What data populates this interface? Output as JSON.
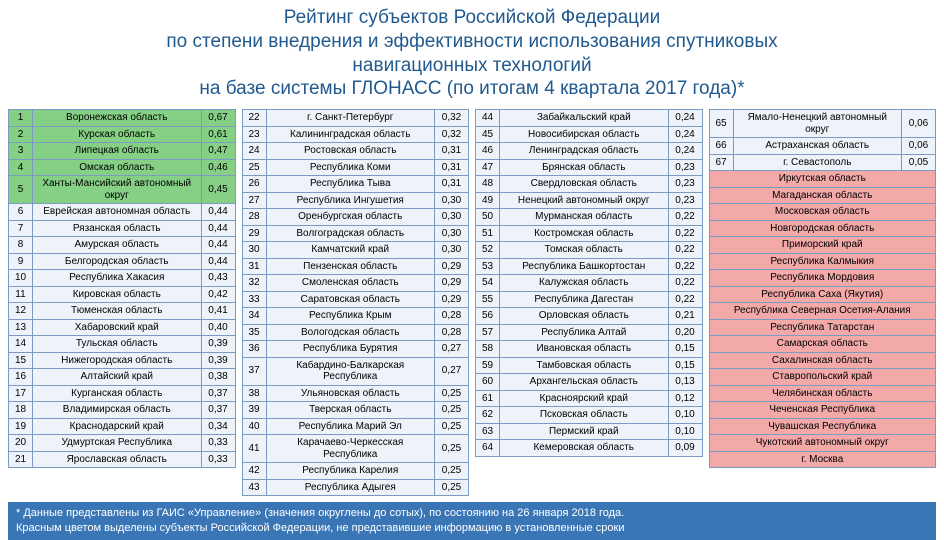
{
  "title": {
    "line1": "Рейтинг субъектов Российской Федерации",
    "line2": "по степени внедрения и эффективности использования спутниковых",
    "line3": "навигационных технологий",
    "line4": "на базе системы ГЛОНАСС (по итогам 4 квартала 2017 года)*"
  },
  "columns": [
    {
      "rows": [
        {
          "n": "1",
          "name": "Воронежская область",
          "v": "0,67",
          "hl": "green"
        },
        {
          "n": "2",
          "name": "Курская область",
          "v": "0,61",
          "hl": "green"
        },
        {
          "n": "3",
          "name": "Липецкая область",
          "v": "0,47",
          "hl": "green"
        },
        {
          "n": "4",
          "name": "Омская область",
          "v": "0,46",
          "hl": "green"
        },
        {
          "n": "5",
          "name": "Ханты-Мансийский автономный округ",
          "v": "0,45",
          "hl": "green"
        },
        {
          "n": "6",
          "name": "Еврейская автономная область",
          "v": "0,44"
        },
        {
          "n": "7",
          "name": "Рязанская область",
          "v": "0,44"
        },
        {
          "n": "8",
          "name": "Амурская область",
          "v": "0,44"
        },
        {
          "n": "9",
          "name": "Белгородская область",
          "v": "0,44"
        },
        {
          "n": "10",
          "name": "Республика Хакасия",
          "v": "0,43"
        },
        {
          "n": "11",
          "name": "Кировская область",
          "v": "0,42"
        },
        {
          "n": "12",
          "name": "Тюменская область",
          "v": "0,41"
        },
        {
          "n": "13",
          "name": "Хабаровский край",
          "v": "0,40"
        },
        {
          "n": "14",
          "name": "Тульская область",
          "v": "0,39"
        },
        {
          "n": "15",
          "name": "Нижегородская область",
          "v": "0,39"
        },
        {
          "n": "16",
          "name": "Алтайский край",
          "v": "0,38"
        },
        {
          "n": "17",
          "name": "Курганская область",
          "v": "0,37"
        },
        {
          "n": "18",
          "name": "Владимирская область",
          "v": "0,37"
        },
        {
          "n": "19",
          "name": "Краснодарский край",
          "v": "0,34"
        },
        {
          "n": "20",
          "name": "Удмуртская Республика",
          "v": "0,33"
        },
        {
          "n": "21",
          "name": "Ярославская область",
          "v": "0,33"
        }
      ]
    },
    {
      "rows": [
        {
          "n": "22",
          "name": "г. Санкт-Петербург",
          "v": "0,32"
        },
        {
          "n": "23",
          "name": "Калининградская область",
          "v": "0,32"
        },
        {
          "n": "24",
          "name": "Ростовская область",
          "v": "0,31"
        },
        {
          "n": "25",
          "name": "Республика Коми",
          "v": "0,31"
        },
        {
          "n": "26",
          "name": "Республика Тыва",
          "v": "0,31"
        },
        {
          "n": "27",
          "name": "Республика Ингушетия",
          "v": "0,30"
        },
        {
          "n": "28",
          "name": "Оренбургская область",
          "v": "0,30"
        },
        {
          "n": "29",
          "name": "Волгоградская область",
          "v": "0,30"
        },
        {
          "n": "30",
          "name": "Камчатский край",
          "v": "0,30"
        },
        {
          "n": "31",
          "name": "Пензенская область",
          "v": "0,29"
        },
        {
          "n": "32",
          "name": "Смоленская область",
          "v": "0,29"
        },
        {
          "n": "33",
          "name": "Саратовская область",
          "v": "0,29"
        },
        {
          "n": "34",
          "name": "Республика Крым",
          "v": "0,28"
        },
        {
          "n": "35",
          "name": "Вологодская область",
          "v": "0,28"
        },
        {
          "n": "36",
          "name": "Республика Бурятия",
          "v": "0,27"
        },
        {
          "n": "37",
          "name": "Кабардино-Балкарская Республика",
          "v": "0,27"
        },
        {
          "n": "38",
          "name": "Ульяновская область",
          "v": "0,25"
        },
        {
          "n": "39",
          "name": "Тверская область",
          "v": "0,25"
        },
        {
          "n": "40",
          "name": "Республика Марий Эл",
          "v": "0,25"
        },
        {
          "n": "41",
          "name": "Карачаево-Черкесская Республика",
          "v": "0,25"
        },
        {
          "n": "42",
          "name": "Республика Карелия",
          "v": "0,25"
        },
        {
          "n": "43",
          "name": "Республика Адыгея",
          "v": "0,25"
        }
      ]
    },
    {
      "rows": [
        {
          "n": "44",
          "name": "Забайкальский край",
          "v": "0,24"
        },
        {
          "n": "45",
          "name": "Новосибирская область",
          "v": "0,24"
        },
        {
          "n": "46",
          "name": "Ленинградская область",
          "v": "0,24"
        },
        {
          "n": "47",
          "name": "Брянская область",
          "v": "0,23"
        },
        {
          "n": "48",
          "name": "Свердловская область",
          "v": "0,23"
        },
        {
          "n": "49",
          "name": "Ненецкий автономный округ",
          "v": "0,23"
        },
        {
          "n": "50",
          "name": "Мурманская область",
          "v": "0,22"
        },
        {
          "n": "51",
          "name": "Костромская область",
          "v": "0,22"
        },
        {
          "n": "52",
          "name": "Томская область",
          "v": "0,22"
        },
        {
          "n": "53",
          "name": "Республика Башкортостан",
          "v": "0,22"
        },
        {
          "n": "54",
          "name": "Калужская область",
          "v": "0,22"
        },
        {
          "n": "55",
          "name": "Республика Дагестан",
          "v": "0,22"
        },
        {
          "n": "56",
          "name": "Орловская область",
          "v": "0,21"
        },
        {
          "n": "57",
          "name": "Республика Алтай",
          "v": "0,20"
        },
        {
          "n": "58",
          "name": "Ивановская область",
          "v": "0,15"
        },
        {
          "n": "59",
          "name": "Тамбовская область",
          "v": "0,15"
        },
        {
          "n": "60",
          "name": "Архангельская область",
          "v": "0,13"
        },
        {
          "n": "61",
          "name": "Красноярский край",
          "v": "0,12"
        },
        {
          "n": "62",
          "name": "Псковская область",
          "v": "0,10"
        },
        {
          "n": "63",
          "name": "Пермский край",
          "v": "0,10"
        },
        {
          "n": "64",
          "name": "Кемеровская область",
          "v": "0,09"
        }
      ]
    },
    {
      "rows": [
        {
          "n": "65",
          "name": "Ямало-Ненецкий автономный округ",
          "v": "0,06"
        },
        {
          "n": "66",
          "name": "Астраханская область",
          "v": "0,06"
        },
        {
          "n": "67",
          "name": "г. Севастополь",
          "v": "0,05"
        },
        {
          "name": "Иркутская область",
          "hl": "red"
        },
        {
          "name": "Магаданская область",
          "hl": "red"
        },
        {
          "name": "Московская область",
          "hl": "red"
        },
        {
          "name": "Новгородская область",
          "hl": "red"
        },
        {
          "name": "Приморский край",
          "hl": "red"
        },
        {
          "name": "Республика Калмыкия",
          "hl": "red"
        },
        {
          "name": "Республика Мордовия",
          "hl": "red"
        },
        {
          "name": "Республика Саха (Якутия)",
          "hl": "red"
        },
        {
          "name": "Республика Северная Осетия-Алания",
          "hl": "red"
        },
        {
          "name": "Республика Татарстан",
          "hl": "red"
        },
        {
          "name": "Самарская область",
          "hl": "red"
        },
        {
          "name": "Сахалинская область",
          "hl": "red"
        },
        {
          "name": "Ставропольский край",
          "hl": "red"
        },
        {
          "name": "Челябинская область",
          "hl": "red"
        },
        {
          "name": "Чеченская Республика",
          "hl": "red"
        },
        {
          "name": "Чувашская Республика",
          "hl": "red"
        },
        {
          "name": "Чукотский автономный округ",
          "hl": "red"
        },
        {
          "name": "г. Москва",
          "hl": "red"
        }
      ]
    }
  ],
  "footnote": {
    "line1": "* Данные представлены из ГАИС «Управление» (значения округлены до сотых), по состоянию на 26 января 2018 года.",
    "line2": "Красным цветом выделены субъекты Российской Федерации, не представившие информацию в установленные сроки"
  },
  "colors": {
    "title": "#215a8e",
    "border": "#7a9bc4",
    "cell_bg": "#eef3f9",
    "green": "#86d086",
    "red": "#f4a9a9",
    "footnote_bg": "#3a76b6"
  }
}
